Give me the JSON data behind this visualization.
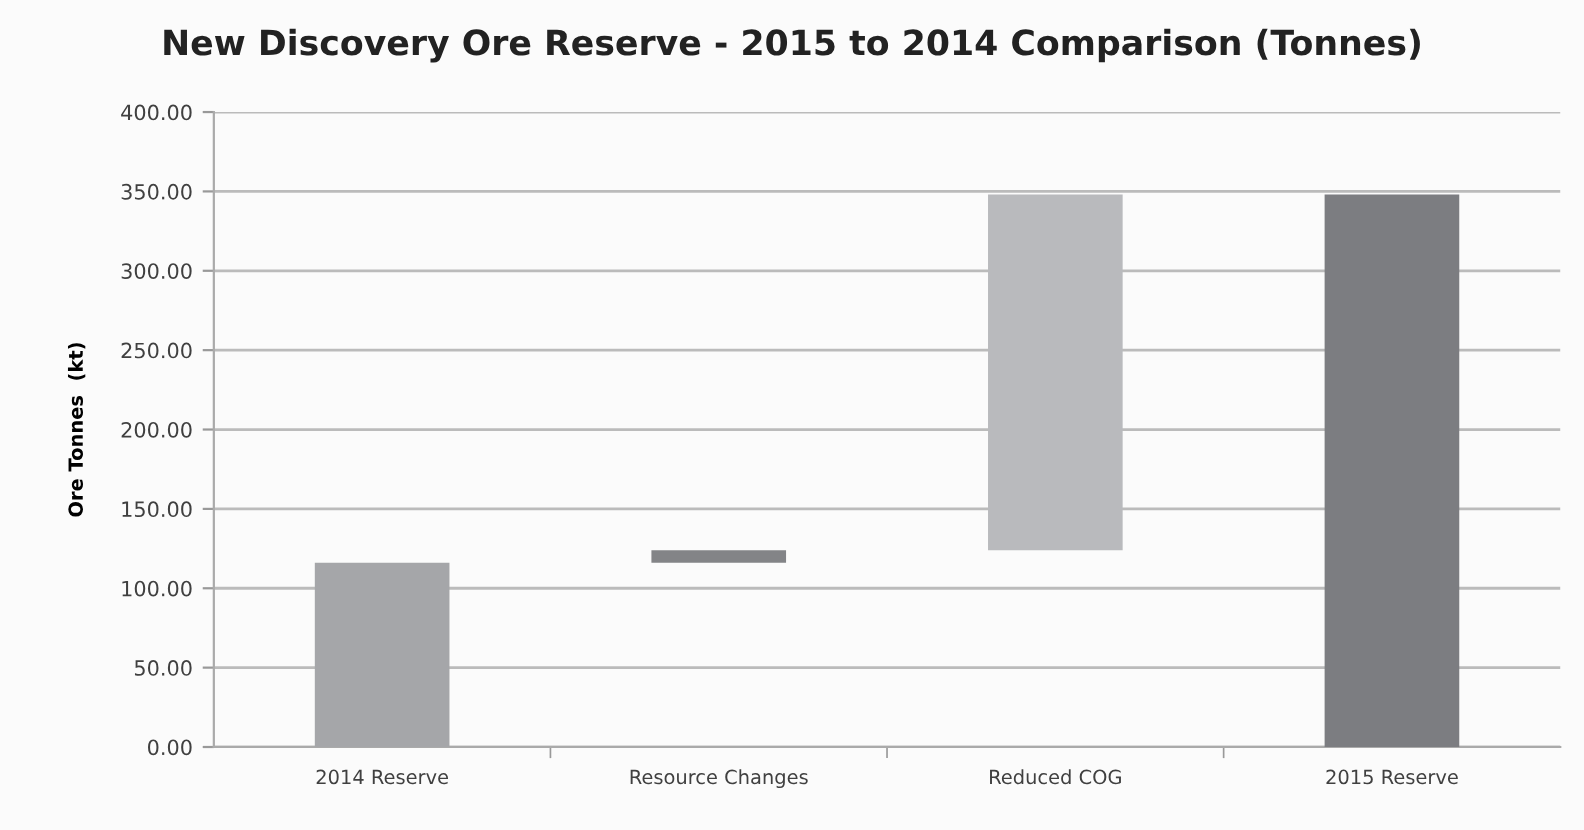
{
  "chart_data": {
    "type": "bar",
    "title": "New Discovery Ore Reserve - 2015 to 2014 Comparison (Tonnes)",
    "ylabel": "Ore Tonnes  (kt)",
    "categories": [
      "2014 Reserve",
      "Resource Changes",
      "Reduced COG",
      "2015 Reserve"
    ],
    "values": [
      116,
      8,
      224,
      348
    ],
    "base": [
      0,
      116,
      124,
      0
    ],
    "colors": [
      "#a5a6a9",
      "#838487",
      "#b9babd",
      "#7c7d81"
    ],
    "ylim": [
      0,
      400
    ],
    "yticks": [
      {
        "value": 0,
        "label": "0.00"
      },
      {
        "value": 50,
        "label": "50.00"
      },
      {
        "value": 100,
        "label": "100.00"
      },
      {
        "value": 150,
        "label": "150.00"
      },
      {
        "value": 200,
        "label": "200.00"
      },
      {
        "value": 250,
        "label": "250.00"
      },
      {
        "value": 300,
        "label": "300.00"
      },
      {
        "value": 350,
        "label": "350.00"
      },
      {
        "value": 400,
        "label": "400.00"
      }
    ],
    "grid": "y",
    "legend": false
  }
}
